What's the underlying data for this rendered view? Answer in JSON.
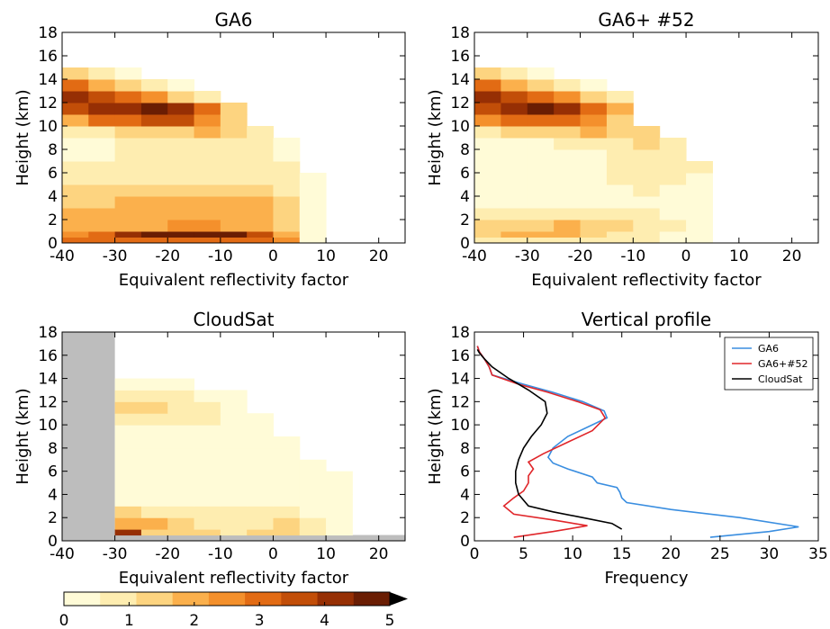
{
  "colors": {
    "scale": [
      "#fffbd7",
      "#feedb0",
      "#fdd480",
      "#fbb04c",
      "#f4902c",
      "#e26b14",
      "#c24e08",
      "#962f04",
      "#6a1d03"
    ],
    "masked": "#bdbdbd",
    "series_ga6": "#3a8ee0",
    "series_ga6_52": "#e0262a",
    "series_cloudsat": "#000000"
  },
  "colorbar": {
    "ticks": [
      "0",
      "1",
      "2",
      "3",
      "4",
      "5"
    ],
    "min": 0,
    "max": 5,
    "extend": "max"
  },
  "chart_data": [
    {
      "type": "heatmap",
      "title": "GA6",
      "xlabel": "Equivalent reflectivity factor",
      "ylabel": "Height (km)",
      "xlim": [
        -40,
        25
      ],
      "ylim": [
        0,
        18
      ],
      "xticks": [
        -40,
        -30,
        -20,
        -10,
        0,
        10,
        20
      ],
      "yticks": [
        0,
        2,
        4,
        6,
        8,
        10,
        12,
        14,
        16,
        18
      ],
      "x_bin_edges": [
        -40,
        -35,
        -30,
        -25,
        -20,
        -15,
        -10,
        -5,
        0,
        5,
        10
      ],
      "y_bin_edges": [
        0,
        0.5,
        1,
        2,
        3,
        4,
        5,
        6,
        7,
        8,
        9,
        10,
        11,
        12,
        13,
        14,
        15,
        16
      ],
      "values": [
        [
          3.3,
          3.3,
          3.3,
          3.3,
          3.3,
          3.3,
          3.3,
          3.3,
          2.3,
          0.5
        ],
        [
          2.7,
          3.3,
          4.0,
          5.0,
          5.0,
          5.0,
          5.0,
          3.8,
          2.0,
          0.5
        ],
        [
          2.2,
          2.2,
          2.2,
          2.2,
          2.7,
          2.7,
          2.2,
          2.2,
          1.5,
          0.5
        ],
        [
          1.8,
          1.8,
          1.8,
          1.8,
          1.8,
          1.8,
          1.8,
          1.8,
          1.5,
          0.5
        ],
        [
          1.6,
          1.6,
          1.8,
          1.8,
          1.8,
          1.8,
          2.2,
          1.8,
          1.4,
          0.5
        ],
        [
          1.3,
          1.3,
          1.4,
          1.4,
          1.4,
          1.4,
          1.4,
          1.4,
          0.9,
          0.4
        ],
        [
          1.1,
          1.1,
          1.1,
          1.1,
          1.1,
          1.1,
          1.1,
          1.1,
          0.8,
          0.4
        ],
        [
          0.9,
          0.9,
          0.7,
          0.7,
          0.7,
          0.7,
          0.9,
          0.9,
          0.7,
          0
        ],
        [
          0.4,
          0.4,
          0.6,
          0.7,
          0.8,
          0.8,
          0.9,
          0.9,
          0.5,
          0
        ],
        [
          0.4,
          0.4,
          0.6,
          0.7,
          0.8,
          0.9,
          1.0,
          0.8,
          0.5,
          0
        ],
        [
          0.8,
          1.1,
          1.2,
          1.4,
          1.6,
          2.2,
          1.4,
          0.9,
          0,
          0
        ],
        [
          2.2,
          2.8,
          3.0,
          3.4,
          3.6,
          2.3,
          1.4,
          0,
          0,
          0
        ],
        [
          3.4,
          4.0,
          4.4,
          4.5,
          4.2,
          3.0,
          1.2,
          0,
          0,
          0
        ],
        [
          4.3,
          3.8,
          3.2,
          2.4,
          1.5,
          0.8,
          0,
          0,
          0,
          0
        ],
        [
          2.8,
          2.0,
          1.4,
          0.9,
          0.5,
          0,
          0,
          0,
          0,
          0
        ],
        [
          1.2,
          0.6,
          0.3,
          0,
          0,
          0,
          0,
          0,
          0,
          0
        ],
        [
          0,
          0,
          0,
          0,
          0,
          0,
          0,
          0,
          0,
          0
        ]
      ]
    },
    {
      "type": "heatmap",
      "title": "GA6+ #52",
      "xlabel": "Equivalent reflectivity factor",
      "ylabel": "Height (km)",
      "xlim": [
        -40,
        25
      ],
      "ylim": [
        0,
        18
      ],
      "xticks": [
        -40,
        -30,
        -20,
        -10,
        0,
        10,
        20
      ],
      "yticks": [
        0,
        2,
        4,
        6,
        8,
        10,
        12,
        14,
        16,
        18
      ],
      "x_bin_edges": [
        -40,
        -35,
        -30,
        -25,
        -20,
        -15,
        -10,
        -5,
        0,
        5
      ],
      "y_bin_edges": [
        0,
        0.5,
        1,
        2,
        3,
        4,
        5,
        6,
        7,
        8,
        9,
        10,
        11,
        12,
        13,
        14,
        15,
        16
      ],
      "values": [
        [
          1.0,
          1.1,
          1.1,
          1.1,
          1.1,
          0.8,
          0.6,
          0.5,
          0.3
        ],
        [
          1.3,
          2.0,
          2.0,
          2.0,
          1.6,
          1.0,
          0.7,
          0.5,
          0.3
        ],
        [
          1.4,
          1.5,
          1.6,
          1.7,
          1.5,
          1.2,
          0.9,
          0.6,
          0.3
        ],
        [
          0.8,
          0.9,
          0.9,
          0.9,
          0.8,
          0.6,
          0.6,
          0.5,
          0.2
        ],
        [
          0.5,
          0.5,
          0.5,
          0.5,
          0.5,
          0.5,
          0.5,
          0.4,
          0.2
        ],
        [
          0.4,
          0.4,
          0.4,
          0.4,
          0.4,
          0.5,
          0.6,
          0.5,
          0.3
        ],
        [
          0.3,
          0.3,
          0.3,
          0.4,
          0.5,
          0.6,
          0.7,
          0.7,
          0.5
        ],
        [
          0.3,
          0.3,
          0.2,
          0.2,
          0.4,
          0.7,
          0.8,
          0.8,
          0.6
        ],
        [
          0.3,
          0.3,
          0.2,
          0.2,
          0.5,
          0.8,
          0.9,
          0.9,
          0
        ],
        [
          0.4,
          0.4,
          0.5,
          0.7,
          0.9,
          1.0,
          1.2,
          0.9,
          0
        ],
        [
          0.9,
          1.2,
          1.4,
          1.6,
          1.7,
          1.6,
          1.2,
          0,
          0
        ],
        [
          2.4,
          2.8,
          3.0,
          3.2,
          2.6,
          1.6,
          0,
          0,
          0
        ],
        [
          3.6,
          4.2,
          4.5,
          4.4,
          3.2,
          1.7,
          0,
          0,
          0
        ],
        [
          4.4,
          3.8,
          3.2,
          2.4,
          1.5,
          0.8,
          0,
          0,
          0
        ],
        [
          2.8,
          2.0,
          1.3,
          0.9,
          0.5,
          0,
          0,
          0,
          0
        ],
        [
          1.2,
          0.6,
          0.3,
          0,
          0,
          0,
          0,
          0,
          0
        ],
        [
          0,
          0,
          0,
          0,
          0,
          0,
          0,
          0,
          0
        ]
      ]
    },
    {
      "type": "heatmap",
      "title": "CloudSat",
      "xlabel": "Equivalent reflectivity factor",
      "ylabel": "Height (km)",
      "xlim": [
        -40,
        25
      ],
      "ylim": [
        0,
        18
      ],
      "xticks": [
        -40,
        -30,
        -20,
        -10,
        0,
        10,
        20
      ],
      "yticks": [
        0,
        2,
        4,
        6,
        8,
        10,
        12,
        14,
        16,
        18
      ],
      "masked_x_below": -30,
      "masked_y_below": 0.5,
      "x_bin_edges": [
        -30,
        -25,
        -20,
        -15,
        -10,
        -5,
        0,
        5,
        10,
        15
      ],
      "y_bin_edges": [
        0.5,
        1,
        2,
        3,
        4,
        5,
        6,
        7,
        8,
        9,
        10,
        11,
        12,
        13,
        14,
        15,
        16
      ],
      "values": [
        [
          4.2,
          1.6,
          1.2,
          1.2,
          0.8,
          1.2,
          1.6,
          1.1,
          0.4
        ],
        [
          1.7,
          1.8,
          1.2,
          1.0,
          0.8,
          0.9,
          1.2,
          0.8,
          0.4
        ],
        [
          1.2,
          0.9,
          0.8,
          0.7,
          0.6,
          0.6,
          0.6,
          0.5,
          0.3
        ],
        [
          0.4,
          0.4,
          0.4,
          0.4,
          0.4,
          0.4,
          0.5,
          0.5,
          0.4
        ],
        [
          0.3,
          0.2,
          0.2,
          0.2,
          0.2,
          0.3,
          0.5,
          0.5,
          0.4
        ],
        [
          0.3,
          0.1,
          0.1,
          0.1,
          0.1,
          0.3,
          0.5,
          0.5,
          0.4
        ],
        [
          0.3,
          0.1,
          0.1,
          0.1,
          0.1,
          0.3,
          0.5,
          0.5,
          0
        ],
        [
          0.3,
          0.2,
          0.1,
          0.1,
          0.2,
          0.3,
          0.5,
          0,
          0
        ],
        [
          0.4,
          0.4,
          0.4,
          0.4,
          0.4,
          0.4,
          0.5,
          0,
          0
        ],
        [
          0.5,
          0.5,
          0.5,
          0.5,
          0.5,
          0.5,
          0,
          0,
          0
        ],
        [
          0.9,
          0.8,
          0.7,
          0.6,
          0.5,
          0.3,
          0,
          0,
          0
        ],
        [
          1.4,
          1.2,
          0.8,
          0.6,
          0.4,
          0,
          0,
          0,
          0
        ],
        [
          0.6,
          0.8,
          0.7,
          0.5,
          0.3,
          0,
          0,
          0,
          0
        ],
        [
          0.3,
          0.3,
          0.3,
          0,
          0,
          0,
          0,
          0,
          0
        ],
        [
          0,
          0,
          0,
          0,
          0,
          0,
          0,
          0,
          0
        ]
      ]
    },
    {
      "type": "line",
      "title": "Vertical profile",
      "xlabel": "Frequency",
      "ylabel": "Height (km)",
      "xlim": [
        0,
        35
      ],
      "ylim": [
        0,
        18
      ],
      "xticks": [
        0,
        5,
        10,
        15,
        20,
        25,
        30,
        35
      ],
      "yticks": [
        0,
        2,
        4,
        6,
        8,
        10,
        12,
        14,
        16,
        18
      ],
      "legend": "top-right",
      "series": [
        {
          "name": "GA6",
          "x": [
            24,
            30,
            33,
            27,
            20,
            15.5,
            15,
            14.8,
            14.5,
            12.5,
            12,
            9.5,
            8,
            7.5,
            8,
            9.5,
            12,
            13.5,
            13.2,
            11,
            8,
            5,
            1.8,
            1.5,
            1,
            0.5,
            0.3
          ],
          "y": [
            0.3,
            0.8,
            1.2,
            2,
            2.7,
            3.3,
            3.7,
            4.2,
            4.6,
            5,
            5.5,
            6.2,
            6.7,
            7.2,
            8,
            9,
            10,
            10.6,
            11.2,
            12,
            12.8,
            13.5,
            14.3,
            15,
            15.7,
            16.3,
            16.8
          ]
        },
        {
          "name": "GA6+#52",
          "x": [
            4,
            8,
            11.5,
            8,
            4,
            3,
            4,
            5,
            5.5,
            5.5,
            6,
            5.5,
            7,
            9.5,
            12,
            13.3,
            12.8,
            10.5,
            7.5,
            4.5,
            1.8,
            1.5,
            1,
            0.5,
            0.3
          ],
          "y": [
            0.3,
            0.8,
            1.3,
            1.8,
            2.3,
            3,
            3.7,
            4.3,
            5,
            5.6,
            6.2,
            6.8,
            7.5,
            8.5,
            9.5,
            10.6,
            11.3,
            12,
            12.8,
            13.5,
            14.3,
            15,
            15.7,
            16.3,
            16.8
          ]
        },
        {
          "name": "CloudSat",
          "x": [
            15,
            14,
            11,
            8,
            5.5,
            4.5,
            4.2,
            4.2,
            4.5,
            5,
            5.8,
            6.8,
            7.4,
            7.2,
            5.5,
            3.5,
            1.8,
            1,
            0.5,
            0.3
          ],
          "y": [
            1.0,
            1.5,
            2.0,
            2.5,
            3.0,
            4.0,
            5.0,
            6.0,
            7.0,
            8.0,
            9.0,
            10.0,
            11.0,
            12.0,
            13.0,
            14.0,
            15.0,
            15.7,
            16.2,
            16.5
          ]
        }
      ]
    }
  ]
}
